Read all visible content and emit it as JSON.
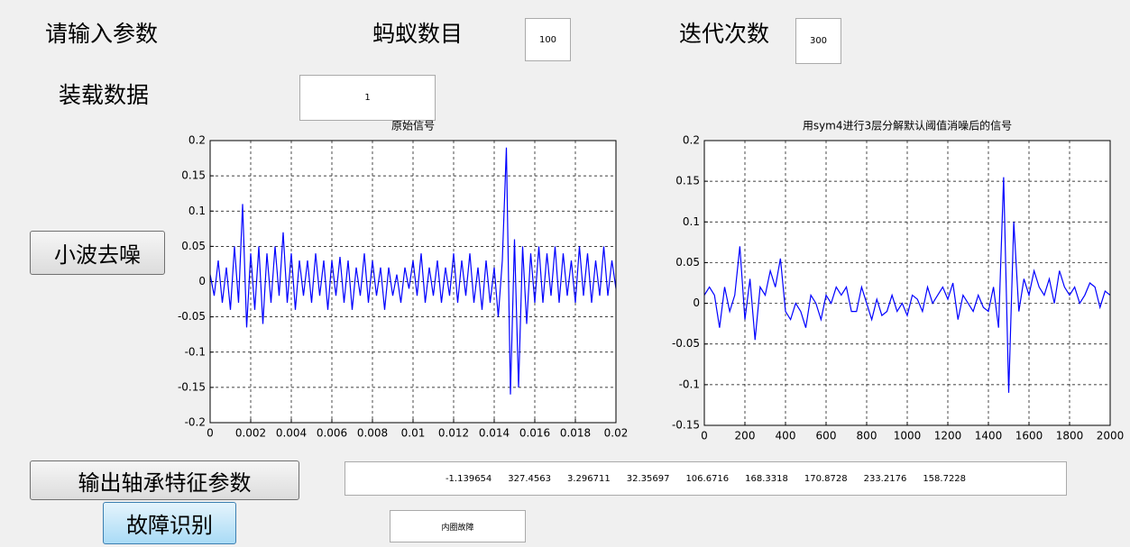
{
  "header": {
    "prompt": "请输入参数",
    "load_label": "装载数据"
  },
  "params": {
    "ants_label": "蚂蚁数目",
    "ants": 100,
    "iter_label": "迭代次数",
    "iter": 300,
    "load": 1
  },
  "buttons": {
    "denoise": "小波去噪",
    "features": "输出轴承特征参数",
    "diagnose": "故障识别"
  },
  "features": {
    "values": [
      -1.139654,
      327.4563,
      3.296711,
      32.35697,
      106.6716,
      168.3318,
      170.8728,
      233.2176,
      158.7228
    ]
  },
  "result": {
    "text": "内圈故障"
  },
  "chart_data": [
    {
      "type": "line",
      "title": "原始信号",
      "grid": true,
      "x": [
        0,
        0.0002,
        0.0004,
        0.0006,
        0.0008,
        0.001,
        0.0012,
        0.0014,
        0.0016,
        0.0018,
        0.002,
        0.0022,
        0.0024,
        0.0026,
        0.0028,
        0.003,
        0.0032,
        0.0034,
        0.0036,
        0.0038,
        0.004,
        0.0042,
        0.0044,
        0.0046,
        0.0048,
        0.005,
        0.0052,
        0.0054,
        0.0056,
        0.0058,
        0.006,
        0.0062,
        0.0064,
        0.0066,
        0.0068,
        0.007,
        0.0072,
        0.0074,
        0.0076,
        0.0078,
        0.008,
        0.0082,
        0.0084,
        0.0086,
        0.0088,
        0.009,
        0.0092,
        0.0094,
        0.0096,
        0.0098,
        0.01,
        0.0102,
        0.0104,
        0.0106,
        0.0108,
        0.011,
        0.0112,
        0.0114,
        0.0116,
        0.0118,
        0.012,
        0.0122,
        0.0124,
        0.0126,
        0.0128,
        0.013,
        0.0132,
        0.0134,
        0.0136,
        0.0138,
        0.014,
        0.0142,
        0.0144,
        0.0146,
        0.0148,
        0.015,
        0.0152,
        0.0154,
        0.0156,
        0.0158,
        0.016,
        0.0162,
        0.0164,
        0.0166,
        0.0168,
        0.017,
        0.0172,
        0.0174,
        0.0176,
        0.0178,
        0.018,
        0.0182,
        0.0184,
        0.0186,
        0.0188,
        0.019,
        0.0192,
        0.0194,
        0.0196,
        0.0198,
        0.02
      ],
      "series": [
        {
          "color": "#0000ff",
          "values": [
            0.01,
            -0.02,
            0.03,
            -0.03,
            0.02,
            -0.04,
            0.05,
            -0.03,
            0.11,
            -0.065,
            0.04,
            -0.04,
            0.05,
            -0.06,
            0.04,
            -0.03,
            0.05,
            -0.02,
            0.07,
            -0.03,
            0.04,
            -0.04,
            0.03,
            -0.02,
            0.03,
            -0.03,
            0.04,
            -0.02,
            0.03,
            -0.04,
            0.03,
            -0.02,
            0.035,
            -0.03,
            0.03,
            -0.04,
            0.02,
            -0.02,
            0.04,
            -0.03,
            0.03,
            -0.02,
            0.02,
            -0.04,
            0.02,
            -0.02,
            0.01,
            -0.03,
            0.02,
            -0.01,
            0.03,
            -0.02,
            0.04,
            -0.03,
            0.02,
            -0.02,
            0.03,
            -0.03,
            0.02,
            -0.02,
            0.04,
            -0.03,
            0.03,
            -0.02,
            0.04,
            -0.03,
            0.02,
            -0.04,
            0.03,
            -0.03,
            0.02,
            -0.05,
            0.03,
            0.19,
            -0.16,
            0.06,
            -0.15,
            0.05,
            -0.06,
            0.04,
            -0.03,
            0.05,
            -0.03,
            0.04,
            -0.02,
            0.05,
            -0.03,
            0.04,
            -0.02,
            0.03,
            -0.03,
            0.05,
            -0.02,
            0.04,
            -0.03,
            0.03,
            -0.02,
            0.05,
            -0.02,
            0.03,
            -0.01
          ]
        }
      ],
      "xlim": [
        0,
        0.02
      ],
      "xticks": [
        0,
        0.002,
        0.004,
        0.006,
        0.008,
        0.01,
        0.012,
        0.014,
        0.016,
        0.018,
        0.02
      ],
      "ylim": [
        -0.2,
        0.2
      ],
      "yticks": [
        -0.2,
        -0.15,
        -0.1,
        -0.05,
        0,
        0.05,
        0.1,
        0.15,
        0.2
      ]
    },
    {
      "type": "line",
      "title": "用sym4进行3层分解默认阈值消噪后的信号",
      "grid": true,
      "x": [
        0,
        25,
        50,
        75,
        100,
        125,
        150,
        175,
        200,
        225,
        250,
        275,
        300,
        325,
        350,
        375,
        400,
        425,
        450,
        475,
        500,
        525,
        550,
        575,
        600,
        625,
        650,
        675,
        700,
        725,
        750,
        775,
        800,
        825,
        850,
        875,
        900,
        925,
        950,
        975,
        1000,
        1025,
        1050,
        1075,
        1100,
        1125,
        1150,
        1175,
        1200,
        1225,
        1250,
        1275,
        1300,
        1325,
        1350,
        1375,
        1400,
        1425,
        1450,
        1475,
        1500,
        1525,
        1550,
        1575,
        1600,
        1625,
        1650,
        1675,
        1700,
        1725,
        1750,
        1775,
        1800,
        1825,
        1850,
        1875,
        1900,
        1925,
        1950,
        1975,
        2000
      ],
      "series": [
        {
          "color": "#0000ff",
          "values": [
            0.01,
            0.02,
            0.01,
            -0.03,
            0.02,
            -0.01,
            0.01,
            0.07,
            -0.02,
            0.03,
            -0.045,
            0.02,
            0.01,
            0.04,
            0.02,
            0.055,
            -0.01,
            -0.02,
            0,
            -0.01,
            -0.03,
            0.01,
            0,
            -0.02,
            0.01,
            0,
            0.02,
            0.01,
            0.02,
            -0.01,
            -0.01,
            0.02,
            0,
            -0.02,
            0.005,
            -0.015,
            -0.01,
            0.01,
            -0.01,
            0,
            -0.015,
            0.01,
            0.005,
            -0.01,
            0.02,
            0,
            0.01,
            0.02,
            0.005,
            0.025,
            -0.02,
            0.01,
            0,
            -0.01,
            0.01,
            -0.005,
            -0.01,
            0.02,
            -0.03,
            0.155,
            -0.11,
            0.1,
            -0.01,
            0.03,
            0.01,
            0.04,
            0.02,
            0.01,
            0.03,
            0,
            0.04,
            0.02,
            0.01,
            0.02,
            0,
            0.01,
            0.025,
            0.02,
            -0.005,
            0.015,
            0.01
          ]
        }
      ],
      "xlim": [
        0,
        2000
      ],
      "xticks": [
        0,
        200,
        400,
        600,
        800,
        1000,
        1200,
        1400,
        1600,
        1800,
        2000
      ],
      "ylim": [
        -0.15,
        0.2
      ],
      "yticks": [
        -0.15,
        -0.1,
        -0.05,
        0,
        0.05,
        0.1,
        0.15,
        0.2
      ]
    }
  ]
}
